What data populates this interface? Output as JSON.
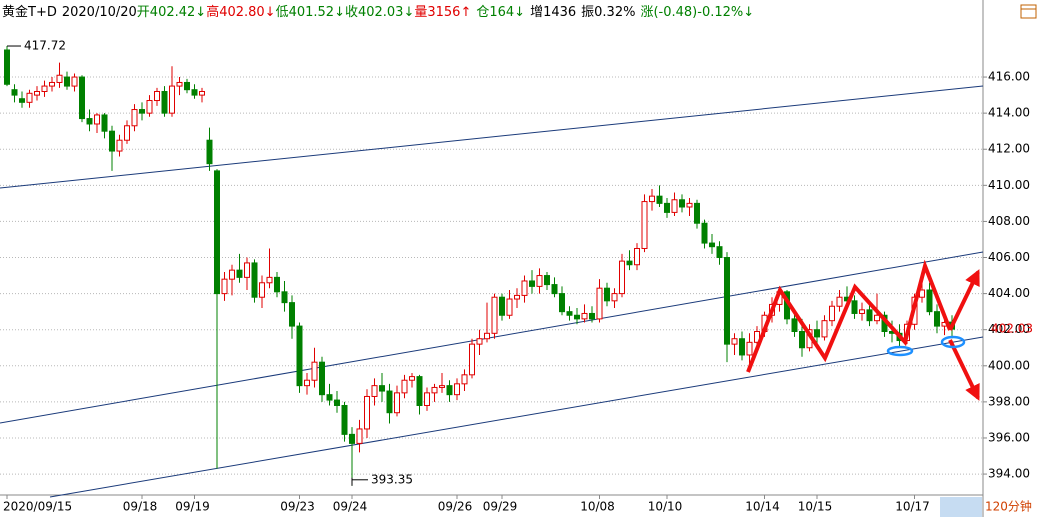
{
  "chart_data": {
    "type": "candlestick",
    "header": [
      {
        "text": "黄金T+D",
        "color": "#000000"
      },
      {
        "text": "2020/10/20",
        "color": "#000000"
      },
      {
        "text": "开402.42↓",
        "color": "#008000"
      },
      {
        "text": "高402.80↓",
        "color": "#e00000"
      },
      {
        "text": "低401.52↓",
        "color": "#008000"
      },
      {
        "text": "收402.03↓",
        "color": "#008000"
      },
      {
        "text": "量3156↑",
        "color": "#e00000"
      },
      {
        "text": "仓164↓",
        "color": "#008000"
      },
      {
        "text": "增1436",
        "color": "#000000"
      },
      {
        "text": "振0.32%",
        "color": "#000000"
      },
      {
        "text": "涨(-0.48)-0.12%↓",
        "color": "#008000"
      }
    ],
    "high_label": "417.72",
    "low_label": "393.35",
    "last_label": "402.03",
    "period_label": "120分钟",
    "up_color": "#e00000",
    "down_color": "#008000",
    "ylim": [
      392.84,
      420.27
    ],
    "yticks": [
      {
        "value": 394,
        "label": "394.00"
      },
      {
        "value": 396,
        "label": "396.00"
      },
      {
        "value": 398,
        "label": "398.00"
      },
      {
        "value": 400,
        "label": "400.00"
      },
      {
        "value": 402,
        "label": "402.00"
      },
      {
        "value": 404,
        "label": "404.00"
      },
      {
        "value": 406,
        "label": "406.00"
      },
      {
        "value": 408,
        "label": "408.00"
      },
      {
        "value": 410,
        "label": "410.00"
      },
      {
        "value": 412,
        "label": "412.00"
      },
      {
        "value": 414,
        "label": "414.00"
      },
      {
        "value": 416,
        "label": "416.00"
      }
    ],
    "grid": true,
    "categories": [
      "2020/09/15",
      null,
      null,
      null,
      null,
      null,
      null,
      null,
      null,
      null,
      null,
      null,
      null,
      null,
      null,
      null,
      null,
      null,
      "09/18",
      null,
      null,
      null,
      null,
      null,
      null,
      "09/19",
      null,
      null,
      null,
      null,
      null,
      null,
      null,
      null,
      null,
      null,
      null,
      null,
      null,
      "09/23",
      null,
      null,
      null,
      null,
      null,
      null,
      "09/24",
      null,
      null,
      null,
      null,
      null,
      null,
      null,
      null,
      null,
      null,
      null,
      null,
      null,
      "09/26",
      null,
      null,
      null,
      null,
      null,
      "09/29",
      null,
      null,
      null,
      null,
      null,
      null,
      null,
      null,
      null,
      null,
      null,
      null,
      "10/08",
      null,
      null,
      null,
      null,
      null,
      null,
      null,
      null,
      "10/10",
      null,
      null,
      null,
      null,
      null,
      null,
      null,
      null,
      null,
      null,
      null,
      null,
      "10/14",
      null,
      null,
      null,
      null,
      null,
      null,
      "10/15",
      null,
      null,
      null,
      null,
      null,
      null,
      null,
      null,
      null,
      null,
      null,
      null,
      "10/17",
      null,
      null,
      null,
      null,
      null
    ],
    "ohlc": [
      [
        417.5,
        417.72,
        415.5,
        415.6
      ],
      [
        415.3,
        415.6,
        414.6,
        415.0
      ],
      [
        414.8,
        415.2,
        414.3,
        414.6
      ],
      [
        414.6,
        415.3,
        414.3,
        415.1
      ],
      [
        415.0,
        415.5,
        414.7,
        415.2
      ],
      [
        415.2,
        415.8,
        414.9,
        415.5
      ],
      [
        415.5,
        416.0,
        415.2,
        415.7
      ],
      [
        415.7,
        416.8,
        415.4,
        416.1
      ],
      [
        416.0,
        416.3,
        415.3,
        415.5
      ],
      [
        415.5,
        416.2,
        415.2,
        416.0
      ],
      [
        416.0,
        416.1,
        413.5,
        413.7
      ],
      [
        413.7,
        414.2,
        413.0,
        413.4
      ],
      [
        413.4,
        414.0,
        412.9,
        413.9
      ],
      [
        413.9,
        414.0,
        412.6,
        413.0
      ],
      [
        413.0,
        413.3,
        410.8,
        411.9
      ],
      [
        411.9,
        412.8,
        411.6,
        412.5
      ],
      [
        412.5,
        413.6,
        412.3,
        413.3
      ],
      [
        413.3,
        414.5,
        413.0,
        414.2
      ],
      [
        414.2,
        414.6,
        413.6,
        414.0
      ],
      [
        414.0,
        415.0,
        413.8,
        414.7
      ],
      [
        414.7,
        415.4,
        414.4,
        415.2
      ],
      [
        415.2,
        415.5,
        413.8,
        414.0
      ],
      [
        414.0,
        416.6,
        413.8,
        415.5
      ],
      [
        415.5,
        416.0,
        415.0,
        415.7
      ],
      [
        415.7,
        415.9,
        415.1,
        415.3
      ],
      [
        415.3,
        415.6,
        414.8,
        415.0
      ],
      [
        415.0,
        415.4,
        414.6,
        415.2
      ],
      [
        412.5,
        413.2,
        410.8,
        411.2
      ],
      [
        410.8,
        410.9,
        394.3,
        404.0
      ],
      [
        404.0,
        405.2,
        403.6,
        404.8
      ],
      [
        404.8,
        405.6,
        403.9,
        405.3
      ],
      [
        405.3,
        406.2,
        404.6,
        404.9
      ],
      [
        404.9,
        406.0,
        404.2,
        405.7
      ],
      [
        405.7,
        405.9,
        403.5,
        403.8
      ],
      [
        403.8,
        405.0,
        403.2,
        404.6
      ],
      [
        404.6,
        406.5,
        404.3,
        404.9
      ],
      [
        404.9,
        405.2,
        403.8,
        404.1
      ],
      [
        404.1,
        404.7,
        403.0,
        403.5
      ],
      [
        403.5,
        403.9,
        401.5,
        402.2
      ],
      [
        402.2,
        402.4,
        398.5,
        398.9
      ],
      [
        398.9,
        399.6,
        398.4,
        399.2
      ],
      [
        399.2,
        401.0,
        398.8,
        400.2
      ],
      [
        400.2,
        400.5,
        398.0,
        398.4
      ],
      [
        398.4,
        399.0,
        397.8,
        398.1
      ],
      [
        398.1,
        398.6,
        397.4,
        397.8
      ],
      [
        397.8,
        398.0,
        395.8,
        396.2
      ],
      [
        396.2,
        396.6,
        393.35,
        395.7
      ],
      [
        395.7,
        397.0,
        395.2,
        396.5
      ],
      [
        396.5,
        398.7,
        396.0,
        398.3
      ],
      [
        398.3,
        399.3,
        397.8,
        398.9
      ],
      [
        398.9,
        399.6,
        398.0,
        398.6
      ],
      [
        398.6,
        399.0,
        396.8,
        397.4
      ],
      [
        397.4,
        398.9,
        397.2,
        398.5
      ],
      [
        398.5,
        399.5,
        398.2,
        399.2
      ],
      [
        399.2,
        399.6,
        398.8,
        399.4
      ],
      [
        399.4,
        399.5,
        397.3,
        397.8
      ],
      [
        397.8,
        398.8,
        397.5,
        398.5
      ],
      [
        398.5,
        399.0,
        398.0,
        398.8
      ],
      [
        398.8,
        399.6,
        398.5,
        398.9
      ],
      [
        398.9,
        399.2,
        398.0,
        398.4
      ],
      [
        398.4,
        399.3,
        398.1,
        399.0
      ],
      [
        399.0,
        399.8,
        398.6,
        399.5
      ],
      [
        399.5,
        401.5,
        399.3,
        401.2
      ],
      [
        401.2,
        402.0,
        400.6,
        401.5
      ],
      [
        401.5,
        403.5,
        401.3,
        401.8
      ],
      [
        401.8,
        404.0,
        401.5,
        403.8
      ],
      [
        403.8,
        404.0,
        402.5,
        402.8
      ],
      [
        402.8,
        404.2,
        402.6,
        403.7
      ],
      [
        403.7,
        404.3,
        403.2,
        403.9
      ],
      [
        403.9,
        405.0,
        403.5,
        404.7
      ],
      [
        404.7,
        405.3,
        404.0,
        404.4
      ],
      [
        404.4,
        405.4,
        404.0,
        405.0
      ],
      [
        405.0,
        405.2,
        404.2,
        404.5
      ],
      [
        404.5,
        404.9,
        403.8,
        404.0
      ],
      [
        404.0,
        404.4,
        402.8,
        403.0
      ],
      [
        403.0,
        403.3,
        402.5,
        402.8
      ],
      [
        402.8,
        403.2,
        402.3,
        402.6
      ],
      [
        402.6,
        403.4,
        402.4,
        402.9
      ],
      [
        402.9,
        403.3,
        402.4,
        402.6
      ],
      [
        402.6,
        404.8,
        402.4,
        404.3
      ],
      [
        404.3,
        404.6,
        403.3,
        403.6
      ],
      [
        403.6,
        404.3,
        403.2,
        404.0
      ],
      [
        404.0,
        406.2,
        403.8,
        405.8
      ],
      [
        405.8,
        406.4,
        405.3,
        405.6
      ],
      [
        405.6,
        406.8,
        405.3,
        406.5
      ],
      [
        406.5,
        409.5,
        406.3,
        409.1
      ],
      [
        409.1,
        409.8,
        408.6,
        409.4
      ],
      [
        409.4,
        410.0,
        408.8,
        409.0
      ],
      [
        409.0,
        409.3,
        408.2,
        408.5
      ],
      [
        408.5,
        409.6,
        408.3,
        409.2
      ],
      [
        409.2,
        409.5,
        408.5,
        408.8
      ],
      [
        408.8,
        409.3,
        408.3,
        409.0
      ],
      [
        409.0,
        409.2,
        407.6,
        407.9
      ],
      [
        407.9,
        408.1,
        406.5,
        406.8
      ],
      [
        406.8,
        407.3,
        406.2,
        406.6
      ],
      [
        406.6,
        406.9,
        405.6,
        406.0
      ],
      [
        406.0,
        406.3,
        400.2,
        401.2
      ],
      [
        401.2,
        401.8,
        400.6,
        401.5
      ],
      [
        401.5,
        401.9,
        400.3,
        400.6
      ],
      [
        400.6,
        401.8,
        399.8,
        401.3
      ],
      [
        401.3,
        402.2,
        401.0,
        401.9
      ],
      [
        401.9,
        403.0,
        401.6,
        402.8
      ],
      [
        402.8,
        403.8,
        402.4,
        403.4
      ],
      [
        403.4,
        404.3,
        403.0,
        404.1
      ],
      [
        404.1,
        404.2,
        402.3,
        402.6
      ],
      [
        402.6,
        403.0,
        401.6,
        401.9
      ],
      [
        401.9,
        402.6,
        400.5,
        401.0
      ],
      [
        401.0,
        402.3,
        400.8,
        402.0
      ],
      [
        402.0,
        402.5,
        401.2,
        401.6
      ],
      [
        401.6,
        402.8,
        401.4,
        402.5
      ],
      [
        402.5,
        403.6,
        402.2,
        403.3
      ],
      [
        403.3,
        404.2,
        403.0,
        403.8
      ],
      [
        403.8,
        404.4,
        403.3,
        403.6
      ],
      [
        403.6,
        403.9,
        402.6,
        402.9
      ],
      [
        402.9,
        403.5,
        402.5,
        403.1
      ],
      [
        403.1,
        403.4,
        402.2,
        402.5
      ],
      [
        402.5,
        404.0,
        402.3,
        402.8
      ],
      [
        402.8,
        403.0,
        401.6,
        401.9
      ],
      [
        401.9,
        402.5,
        401.3,
        401.8
      ],
      [
        401.8,
        402.3,
        401.0,
        401.4
      ],
      [
        401.4,
        402.5,
        401.2,
        402.3
      ],
      [
        402.3,
        404.0,
        402.0,
        403.8
      ],
      [
        403.8,
        405.0,
        403.5,
        404.2
      ],
      [
        404.2,
        404.6,
        402.8,
        403.0
      ],
      [
        403.0,
        403.4,
        401.8,
        402.2
      ],
      [
        402.2,
        402.9,
        401.7,
        402.4
      ],
      [
        402.42,
        402.8,
        401.52,
        402.03
      ]
    ]
  }
}
